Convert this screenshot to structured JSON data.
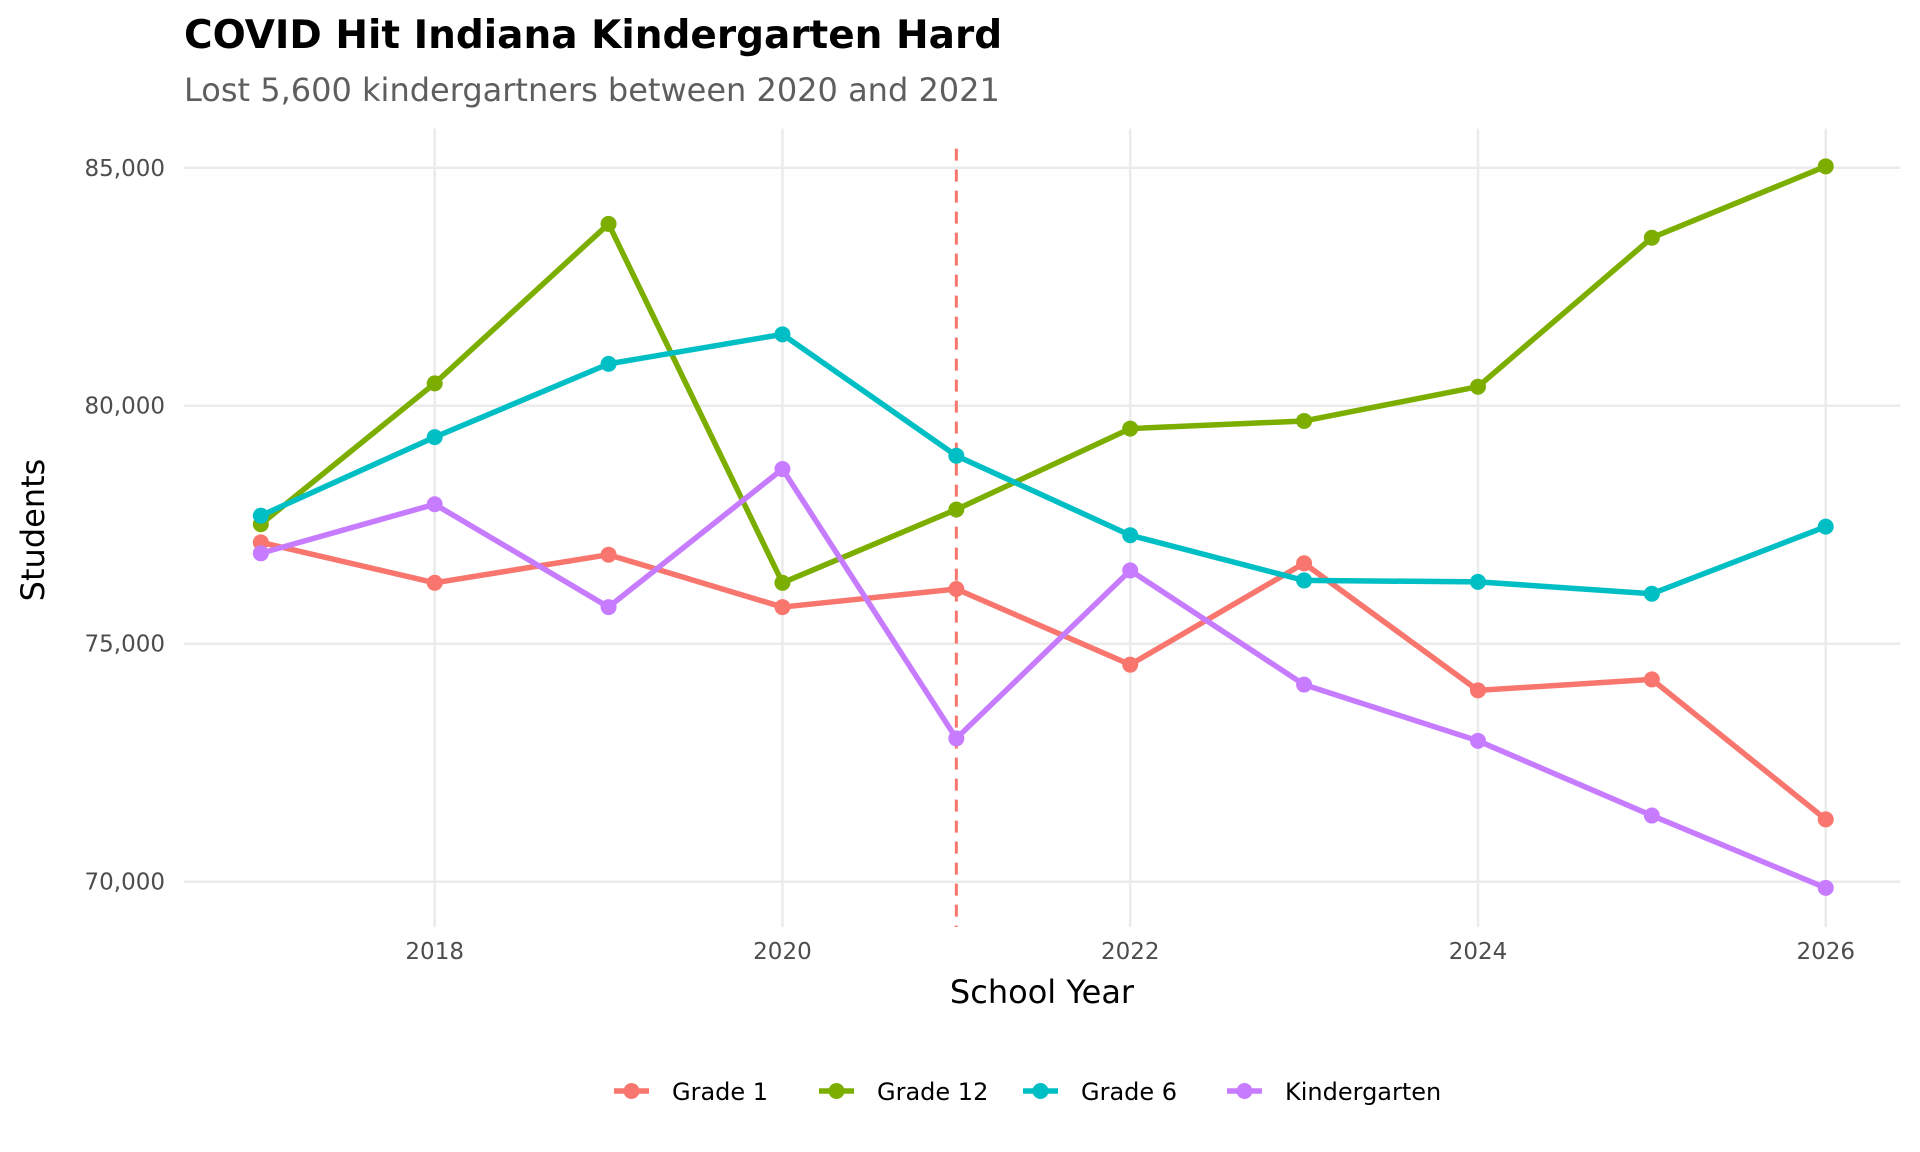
{
  "chart_data": {
    "type": "line",
    "title": "COVID Hit Indiana Kindergarten Hard",
    "subtitle": "Lost 5,600 kindergartners between 2020 and 2021",
    "xlabel": "School Year",
    "ylabel": "Students",
    "x": [
      2017,
      2018,
      2019,
      2020,
      2021,
      2022,
      2023,
      2024,
      2025,
      2026
    ],
    "xlim": [
      2016.5,
      2026.5
    ],
    "ylim": [
      69200,
      85800
    ],
    "xticks": [
      2018,
      2020,
      2022,
      2024,
      2026
    ],
    "xtick_labels": [
      "2018",
      "2020",
      "2022",
      "2024",
      "2026"
    ],
    "yticks": [
      70000,
      75000,
      80000,
      85000
    ],
    "ytick_labels": [
      "70,000",
      "75,000",
      "80,000",
      "85,000"
    ],
    "grid": true,
    "vline": {
      "x": 2021,
      "style": "dashed",
      "color": "#F8766D"
    },
    "legend_position": "bottom",
    "series": [
      {
        "name": "Grade 1",
        "color": "#F8766D",
        "values": [
          77130,
          76280,
          76870,
          75770,
          76150,
          74560,
          76690,
          74020,
          74250,
          71310
        ]
      },
      {
        "name": "Grade 12",
        "color": "#7CAE00",
        "values": [
          77510,
          80470,
          83820,
          76280,
          77820,
          79520,
          79680,
          80400,
          83530,
          85030
        ]
      },
      {
        "name": "Grade 6",
        "color": "#00BFC4",
        "values": [
          77690,
          79340,
          80880,
          81500,
          78950,
          77280,
          76330,
          76300,
          76050,
          77460
        ]
      },
      {
        "name": "Kindergarten",
        "color": "#C77CFF",
        "values": [
          76900,
          77930,
          75770,
          78670,
          73010,
          76540,
          74140,
          72960,
          71390,
          69870
        ]
      }
    ]
  }
}
